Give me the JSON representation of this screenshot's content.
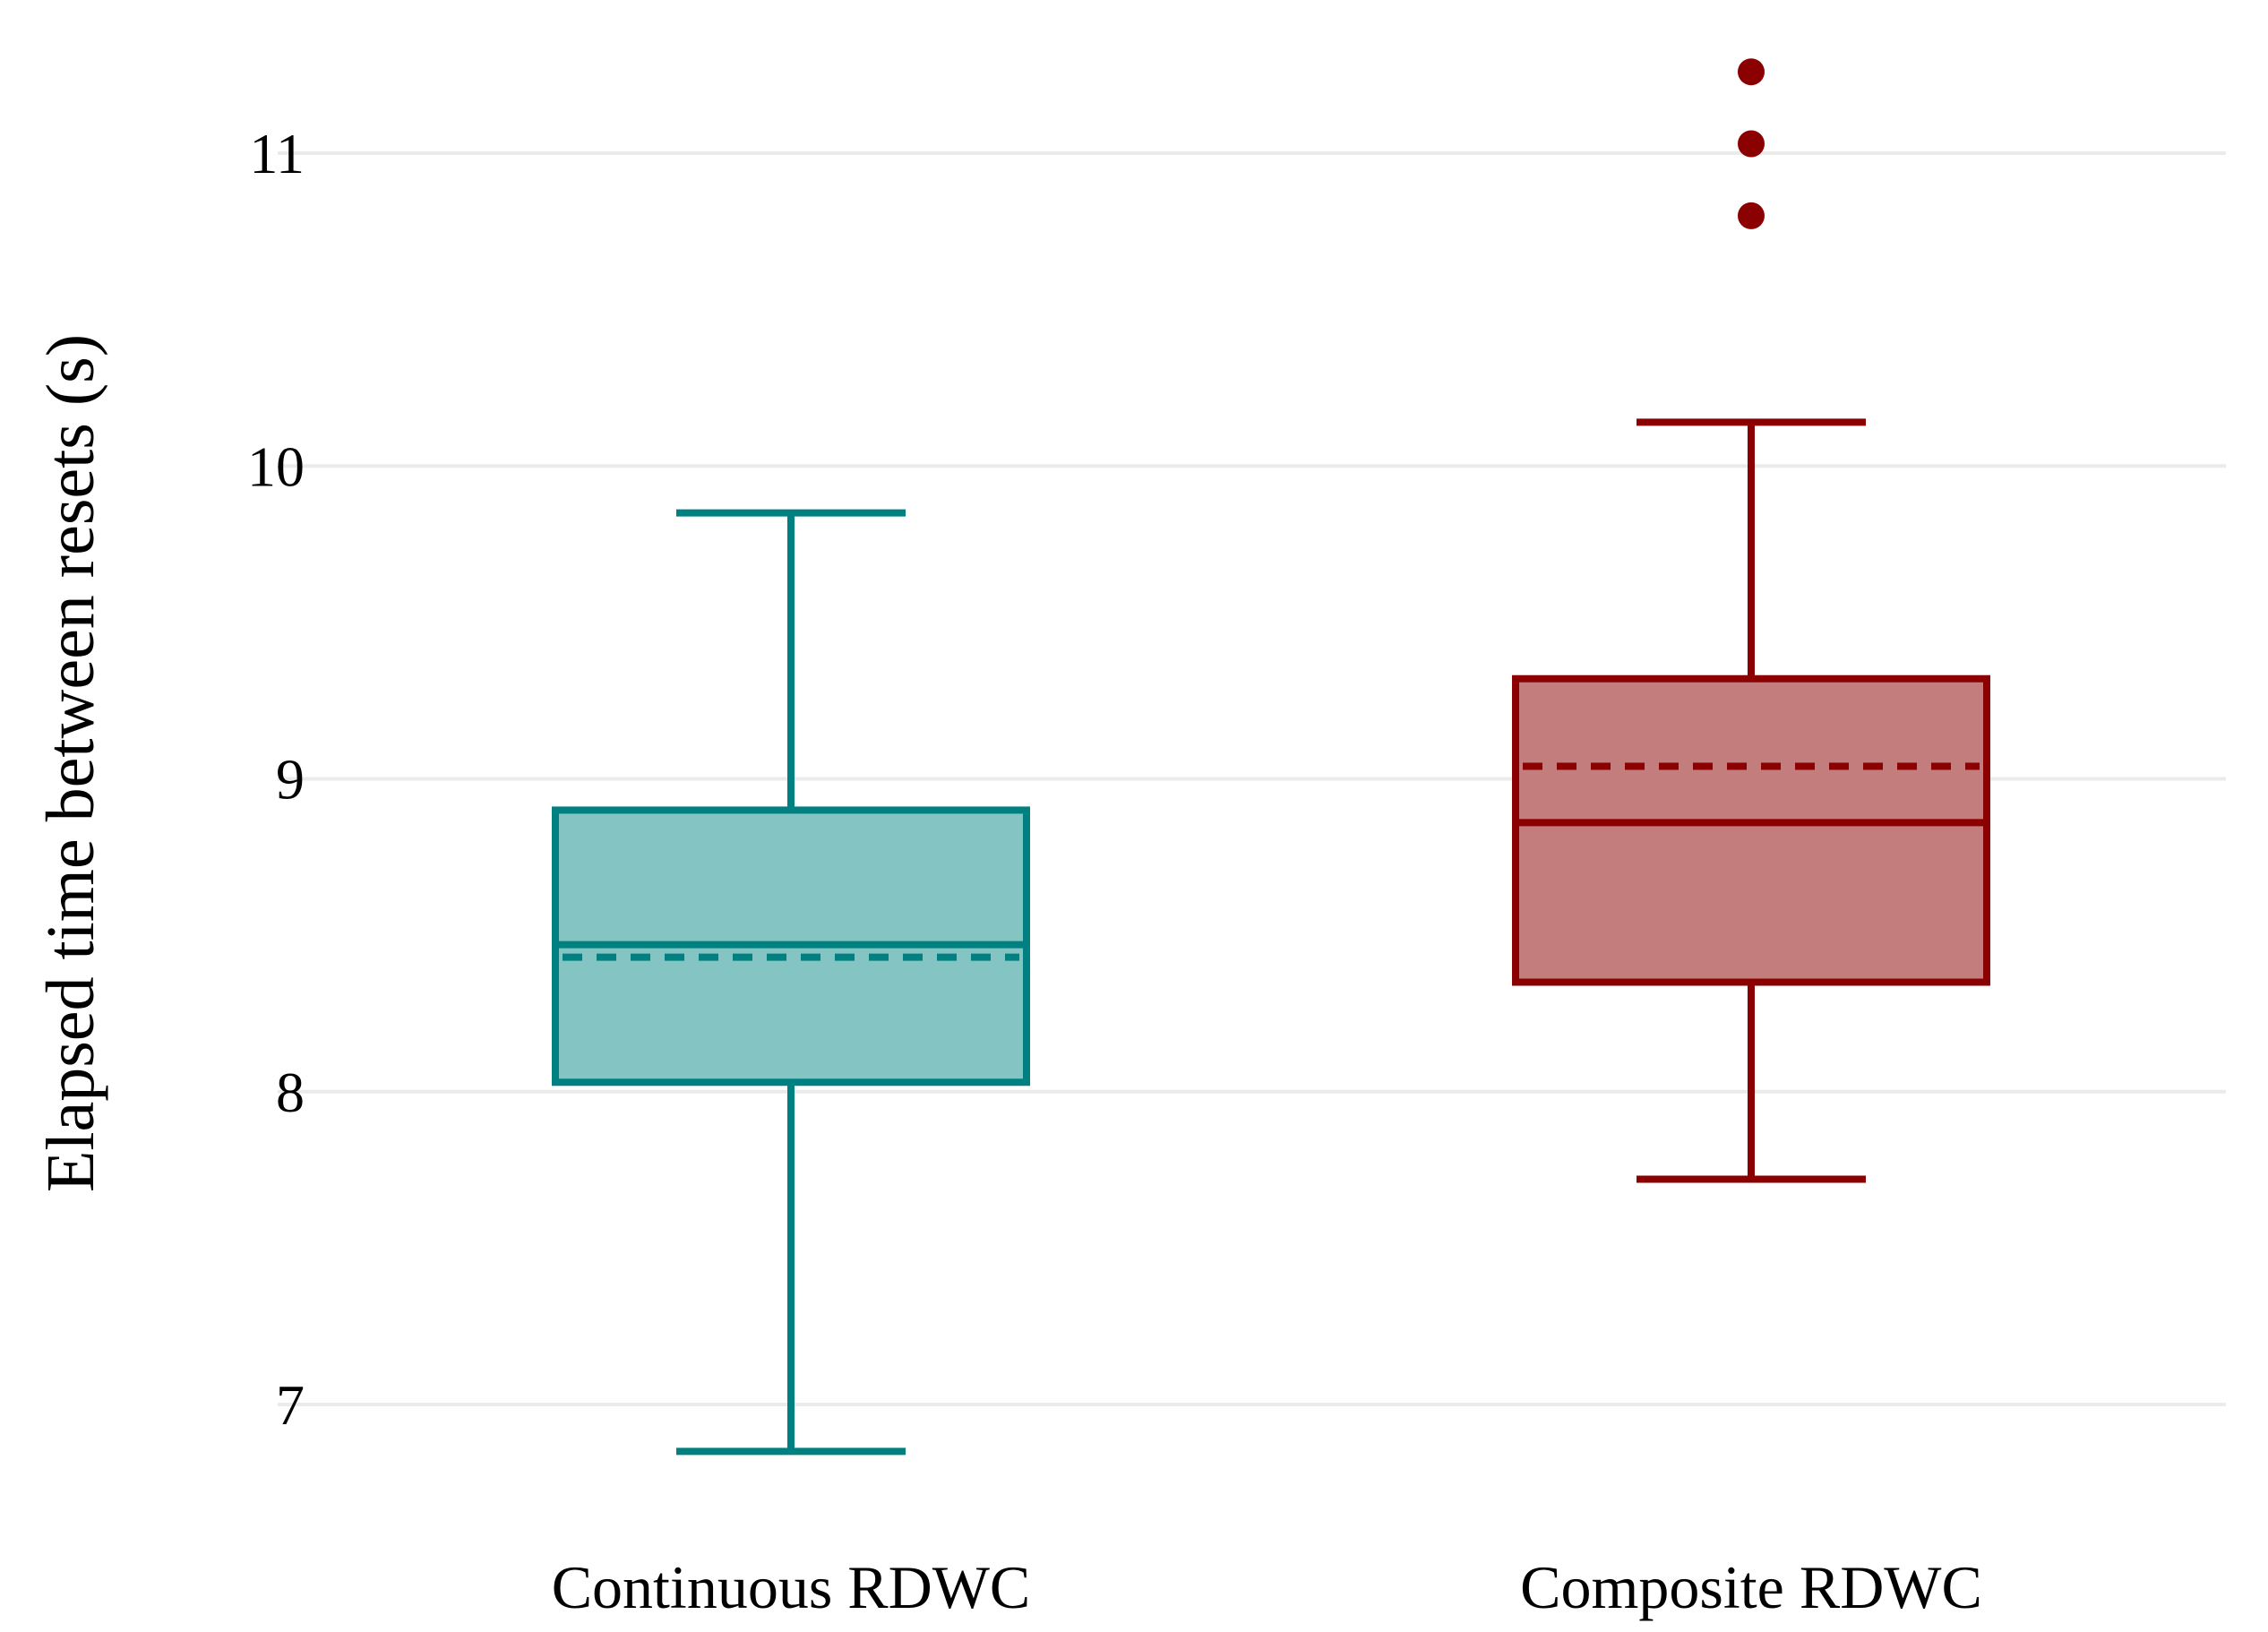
{
  "chart_data": {
    "type": "box",
    "title": "",
    "xlabel": "",
    "ylabel": "Elapsed time between resets (s)",
    "ylim": [
      6.6,
      11.4
    ],
    "yticks": [
      7,
      8,
      9,
      10,
      11
    ],
    "grid": true,
    "legend": "none",
    "categories": [
      "Continuous RDWC",
      "Composite RDWC"
    ],
    "series": [
      {
        "category": "Continuous RDWC",
        "color": "#008080",
        "fill": "#84c5c3",
        "whisker_low": 6.85,
        "q1": 8.03,
        "median": 8.47,
        "mean": 8.43,
        "q3": 8.9,
        "whisker_high": 9.85,
        "outliers": []
      },
      {
        "category": "Composite RDWC",
        "color": "#8b0000",
        "fill": "#c47d7d",
        "whisker_low": 7.72,
        "q1": 8.35,
        "median": 8.86,
        "mean": 9.04,
        "q3": 9.32,
        "whisker_high": 10.14,
        "outliers": [
          10.8,
          11.03,
          11.26
        ]
      }
    ]
  }
}
